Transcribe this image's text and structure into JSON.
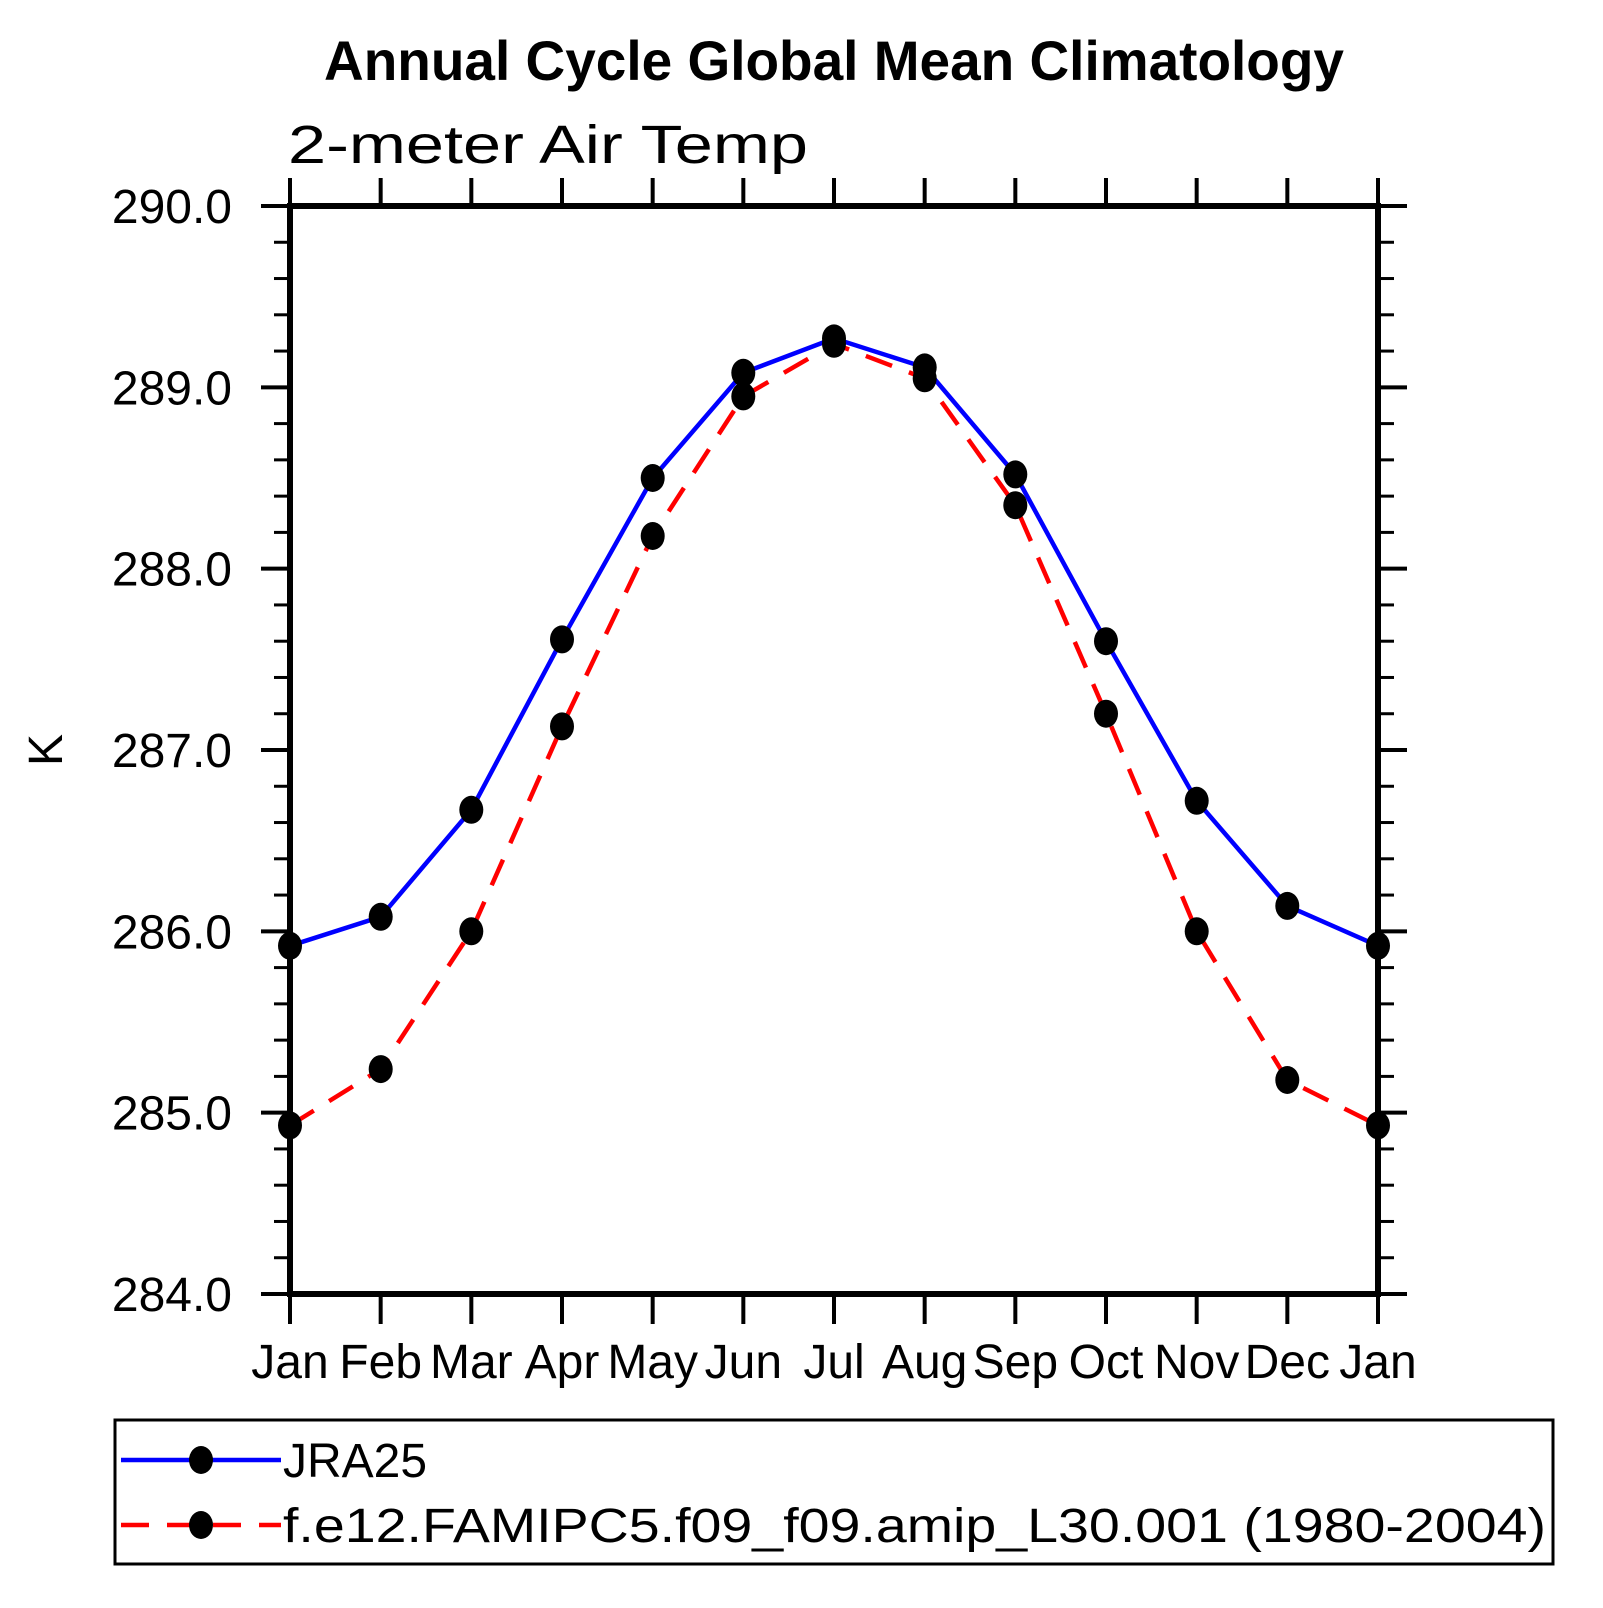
{
  "title": "Annual Cycle Global Mean Climatology",
  "subtitle": "2-meter Air Temp",
  "colors": {
    "jra25_line": "#0000ff",
    "model_line": "#ff0000",
    "marker": "#000000",
    "axis": "#000000",
    "background": "#ffffff"
  },
  "chart_data": {
    "type": "line",
    "title": "Annual Cycle Global Mean Climatology",
    "subtitle": "2-meter Air Temp",
    "xlabel": "",
    "ylabel": "K",
    "x_categories": [
      "Jan",
      "Feb",
      "Mar",
      "Apr",
      "May",
      "Jun",
      "Jul",
      "Aug",
      "Sep",
      "Oct",
      "Nov",
      "Dec",
      "Jan"
    ],
    "ylim": [
      284.0,
      290.0
    ],
    "ytick_major_step": 1.0,
    "ytick_minor_step": 0.2,
    "ytick_labels": [
      "290.0",
      "289.0",
      "288.0",
      "287.0",
      "286.0",
      "285.0",
      "284.0"
    ],
    "grid": false,
    "legend_position": "below-plot",
    "series": [
      {
        "name": "JRA25",
        "color": "#0000ff",
        "line_style": "solid",
        "marker": "filled-circle",
        "marker_color": "#000000",
        "values": [
          285.92,
          286.08,
          286.67,
          287.61,
          288.5,
          289.08,
          289.27,
          289.11,
          288.52,
          287.6,
          286.72,
          286.14,
          285.92
        ]
      },
      {
        "name": "f.e12.FAMIPC5.f09_f09.amip_L30.001 (1980-2004)",
        "color": "#ff0000",
        "line_style": "dashed",
        "marker": "filled-circle",
        "marker_color": "#000000",
        "values": [
          284.93,
          285.24,
          286.0,
          287.13,
          288.18,
          288.95,
          289.24,
          289.05,
          288.35,
          287.2,
          286.0,
          285.18,
          284.93
        ]
      }
    ]
  }
}
